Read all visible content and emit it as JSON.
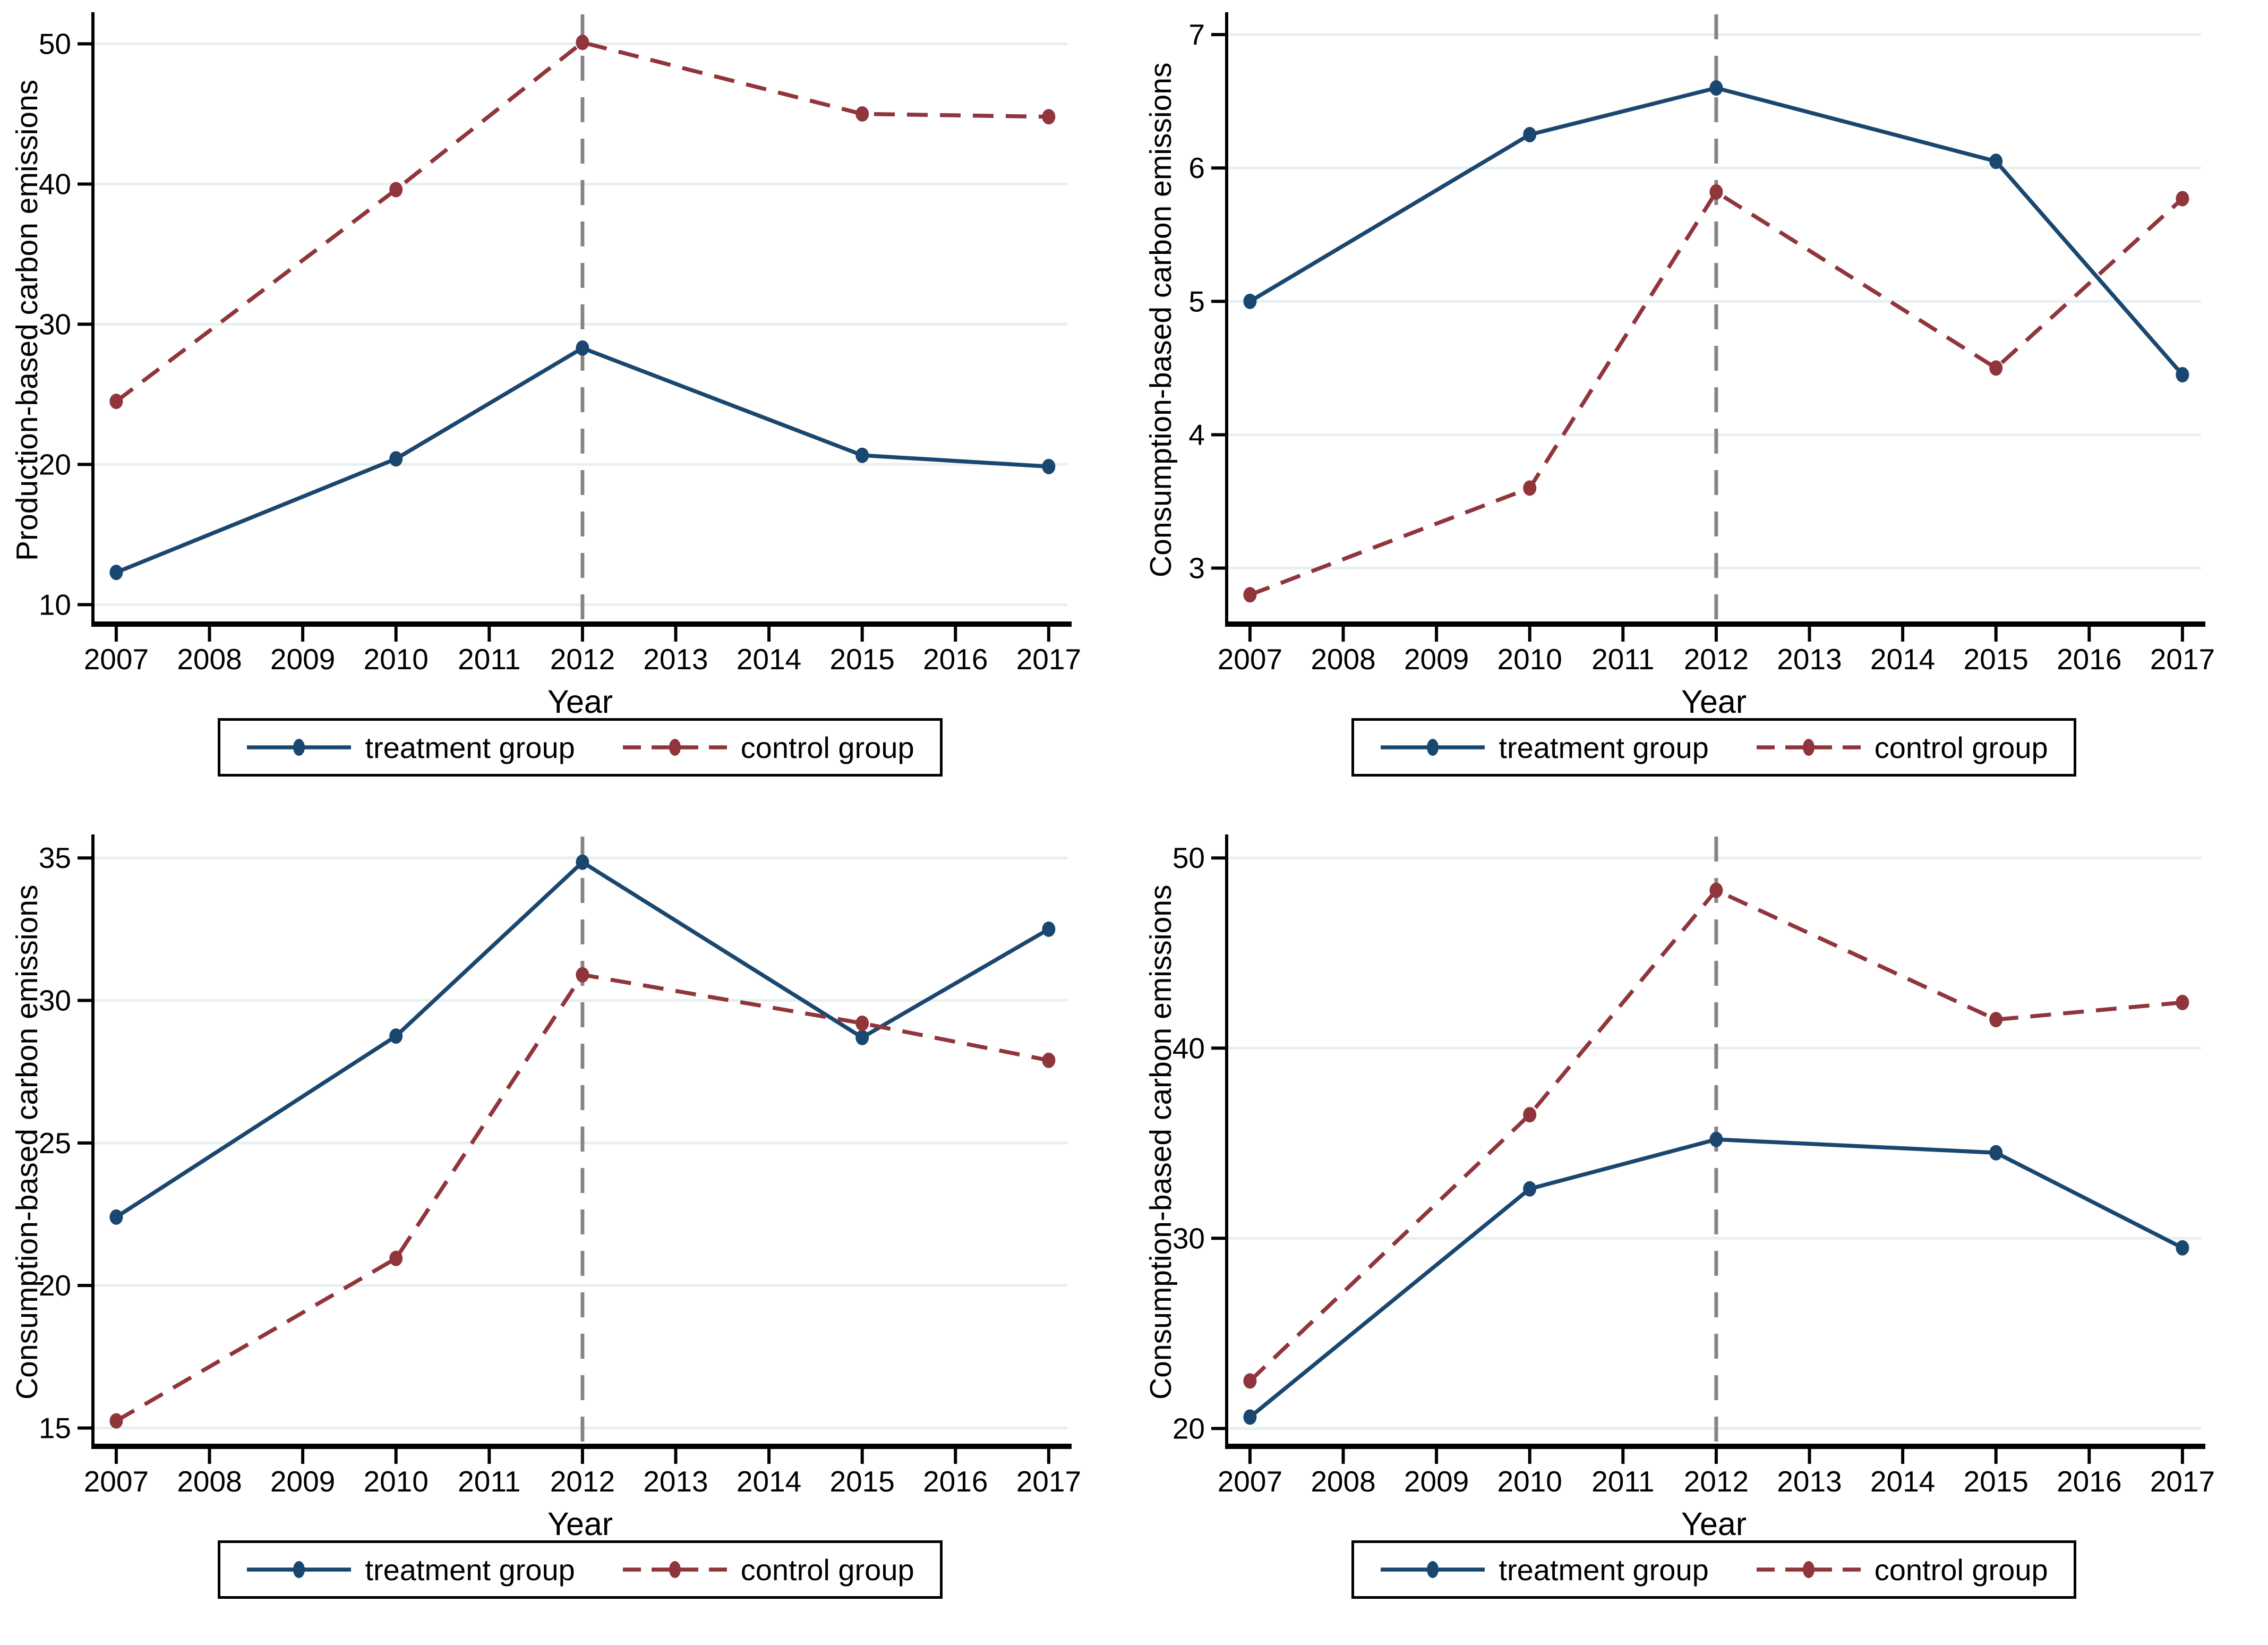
{
  "figure": {
    "background": "#ffffff",
    "layout": "2x2-grid-of-line-charts",
    "panels": 4
  },
  "colors": {
    "treatment": "#1a476f",
    "control": "#90353b",
    "gridline": "#e7eff1",
    "vline": "#858585",
    "axis": "#000000",
    "legend_border": "#000000"
  },
  "legend": {
    "treatment_label": "treatment group",
    "control_label": "control group"
  },
  "chart_data": [
    {
      "type": "line",
      "position": "top-left",
      "title": "",
      "ylabel": "Production-based carbon emissions",
      "xlabel": "Year",
      "x": [
        2007,
        2010,
        2012,
        2015,
        2017
      ],
      "xticks": [
        2007,
        2008,
        2009,
        2010,
        2011,
        2012,
        2013,
        2014,
        2015,
        2016,
        2017
      ],
      "yticks": [
        10,
        20,
        30,
        40,
        50
      ],
      "ylim": [
        8.8,
        51.8
      ],
      "xlim": [
        2006.75,
        2017.2
      ],
      "vline_x": 2012,
      "grid": true,
      "legend_position": "bottom-center",
      "series": [
        {
          "name": "treatment group",
          "style": "solid",
          "color_key": "treatment",
          "values": [
            12.3,
            20.4,
            28.3,
            20.65,
            19.85
          ]
        },
        {
          "name": "control group",
          "style": "dashed",
          "color_key": "control",
          "values": [
            24.5,
            39.6,
            50.1,
            45.0,
            44.8
          ]
        }
      ]
    },
    {
      "type": "line",
      "position": "top-right",
      "title": "",
      "ylabel": "Consumption-based carbon emissions",
      "xlabel": "Year",
      "x": [
        2007,
        2010,
        2012,
        2015,
        2017
      ],
      "xticks": [
        2007,
        2008,
        2009,
        2010,
        2011,
        2012,
        2013,
        2014,
        2015,
        2016,
        2017
      ],
      "yticks": [
        3,
        4,
        5,
        6,
        7
      ],
      "ylim": [
        2.6,
        7.12
      ],
      "xlim": [
        2006.75,
        2017.2
      ],
      "vline_x": 2012,
      "grid": true,
      "legend_position": "bottom-center",
      "series": [
        {
          "name": "treatment group",
          "style": "solid",
          "color_key": "treatment",
          "values": [
            5.0,
            6.25,
            6.6,
            6.05,
            4.45
          ]
        },
        {
          "name": "control group",
          "style": "dashed",
          "color_key": "control",
          "values": [
            2.8,
            3.6,
            5.82,
            4.5,
            5.77
          ]
        }
      ]
    },
    {
      "type": "line",
      "position": "bottom-left",
      "title": "",
      "ylabel": "Consumption-based carbon emissions",
      "xlabel": "Year",
      "x": [
        2007,
        2010,
        2012,
        2015,
        2017
      ],
      "xticks": [
        2007,
        2008,
        2009,
        2010,
        2011,
        2012,
        2013,
        2014,
        2015,
        2016,
        2017
      ],
      "yticks": [
        15,
        20,
        25,
        30,
        35
      ],
      "ylim": [
        14.45,
        35.6
      ],
      "xlim": [
        2006.75,
        2017.2
      ],
      "vline_x": 2012,
      "grid": true,
      "legend_position": "bottom-center",
      "series": [
        {
          "name": "treatment group",
          "style": "solid",
          "color_key": "treatment",
          "values": [
            22.4,
            28.75,
            34.85,
            28.7,
            32.5
          ]
        },
        {
          "name": "control group",
          "style": "dashed",
          "color_key": "control",
          "values": [
            15.25,
            20.95,
            30.9,
            29.2,
            27.9
          ]
        }
      ]
    },
    {
      "type": "line",
      "position": "bottom-right",
      "title": "",
      "ylabel": "Consumption-based carbon emissions",
      "xlabel": "Year",
      "x": [
        2007,
        2010,
        2012,
        2015,
        2017
      ],
      "xticks": [
        2007,
        2008,
        2009,
        2010,
        2011,
        2012,
        2013,
        2014,
        2015,
        2016,
        2017
      ],
      "yticks": [
        20,
        30,
        40,
        50
      ],
      "ylim": [
        19.2,
        50.9
      ],
      "xlim": [
        2006.75,
        2017.2
      ],
      "vline_x": 2012,
      "grid": true,
      "legend_position": "bottom-center",
      "series": [
        {
          "name": "treatment group",
          "style": "solid",
          "color_key": "treatment",
          "values": [
            20.6,
            32.6,
            35.2,
            34.5,
            29.5
          ]
        },
        {
          "name": "control group",
          "style": "dashed",
          "color_key": "control",
          "values": [
            22.5,
            36.5,
            48.3,
            41.5,
            42.4
          ]
        }
      ]
    }
  ]
}
